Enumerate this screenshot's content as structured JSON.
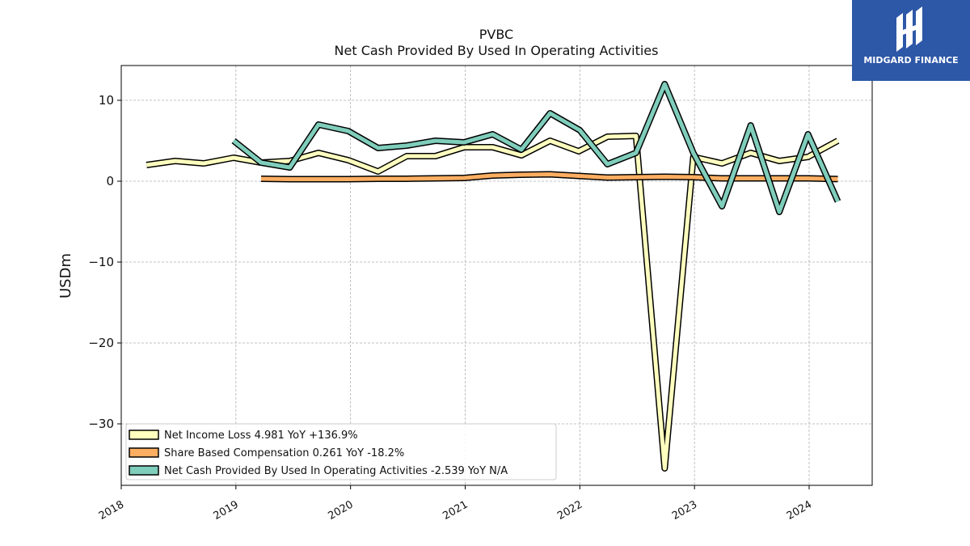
{
  "brand": {
    "name": "MIDGARD FINANCE",
    "bg_color": "#2d57a7"
  },
  "chart_data": {
    "type": "line",
    "title": "PVBC",
    "subtitle": "Net Cash Provided By Used In Operating Activities",
    "xlabel": "",
    "ylabel": "USDm",
    "xlim": [
      2018.0,
      2024.55
    ],
    "ylim": [
      -37.6,
      14.3
    ],
    "x_ticks": [
      2018,
      2019,
      2020,
      2021,
      2022,
      2023,
      2024
    ],
    "x_tick_labels": [
      "2018",
      "2019",
      "2020",
      "2021",
      "2022",
      "2023",
      "2024"
    ],
    "y_ticks": [
      10,
      0,
      -10,
      -20,
      -30
    ],
    "y_tick_labels": [
      "10",
      "0",
      "−10",
      "−20",
      "−30"
    ],
    "grid": true,
    "legend_position": "lower-left",
    "series": [
      {
        "name": "Net Income Loss  4.981 YoY +136.9%",
        "color": "#ffffbf",
        "x": [
          2018.22,
          2018.47,
          2018.72,
          2018.98,
          2019.22,
          2019.47,
          2019.72,
          2019.98,
          2020.24,
          2020.49,
          2020.74,
          2020.99,
          2021.24,
          2021.49,
          2021.74,
          2021.99,
          2022.24,
          2022.49,
          2022.74,
          2022.99,
          2023.24,
          2023.49,
          2023.74,
          2023.99,
          2024.25
        ],
        "values": [
          2.0,
          2.5,
          2.2,
          2.9,
          2.3,
          2.5,
          3.5,
          2.6,
          1.2,
          3.1,
          3.1,
          4.2,
          4.2,
          3.2,
          5.0,
          3.7,
          5.5,
          5.6,
          -35.5,
          3.0,
          2.2,
          3.5,
          2.5,
          3.0,
          5.0
        ]
      },
      {
        "name": "Share Based Compensation  0.261 YoY -18.2%",
        "color": "#fdae61",
        "x": [
          2019.22,
          2019.47,
          2019.72,
          2019.98,
          2020.24,
          2020.49,
          2020.74,
          2020.99,
          2021.24,
          2021.49,
          2021.74,
          2021.99,
          2022.24,
          2022.49,
          2022.74,
          2022.99,
          2023.24,
          2023.49,
          2023.74,
          2023.99,
          2024.25
        ],
        "values": [
          0.3,
          0.25,
          0.25,
          0.25,
          0.3,
          0.3,
          0.35,
          0.4,
          0.7,
          0.8,
          0.85,
          0.65,
          0.45,
          0.5,
          0.55,
          0.5,
          0.35,
          0.35,
          0.35,
          0.35,
          0.26
        ]
      },
      {
        "name": "Net Cash Provided By Used In Operating Activities  -2.539 YoY N/A",
        "color": "#7fcdbb",
        "x": [
          2018.98,
          2019.22,
          2019.47,
          2019.72,
          2019.98,
          2020.24,
          2020.49,
          2020.74,
          2020.99,
          2021.24,
          2021.49,
          2021.74,
          2022.0,
          2022.24,
          2022.49,
          2022.74,
          2022.99,
          2023.24,
          2023.49,
          2023.74,
          2023.99,
          2024.25
        ],
        "values": [
          5.0,
          2.3,
          1.7,
          7.0,
          6.2,
          4.1,
          4.4,
          5.0,
          4.8,
          5.8,
          3.9,
          8.4,
          6.3,
          2.1,
          3.5,
          12.0,
          3.5,
          -3.1,
          6.9,
          -3.8,
          5.8,
          -2.5
        ]
      }
    ]
  }
}
